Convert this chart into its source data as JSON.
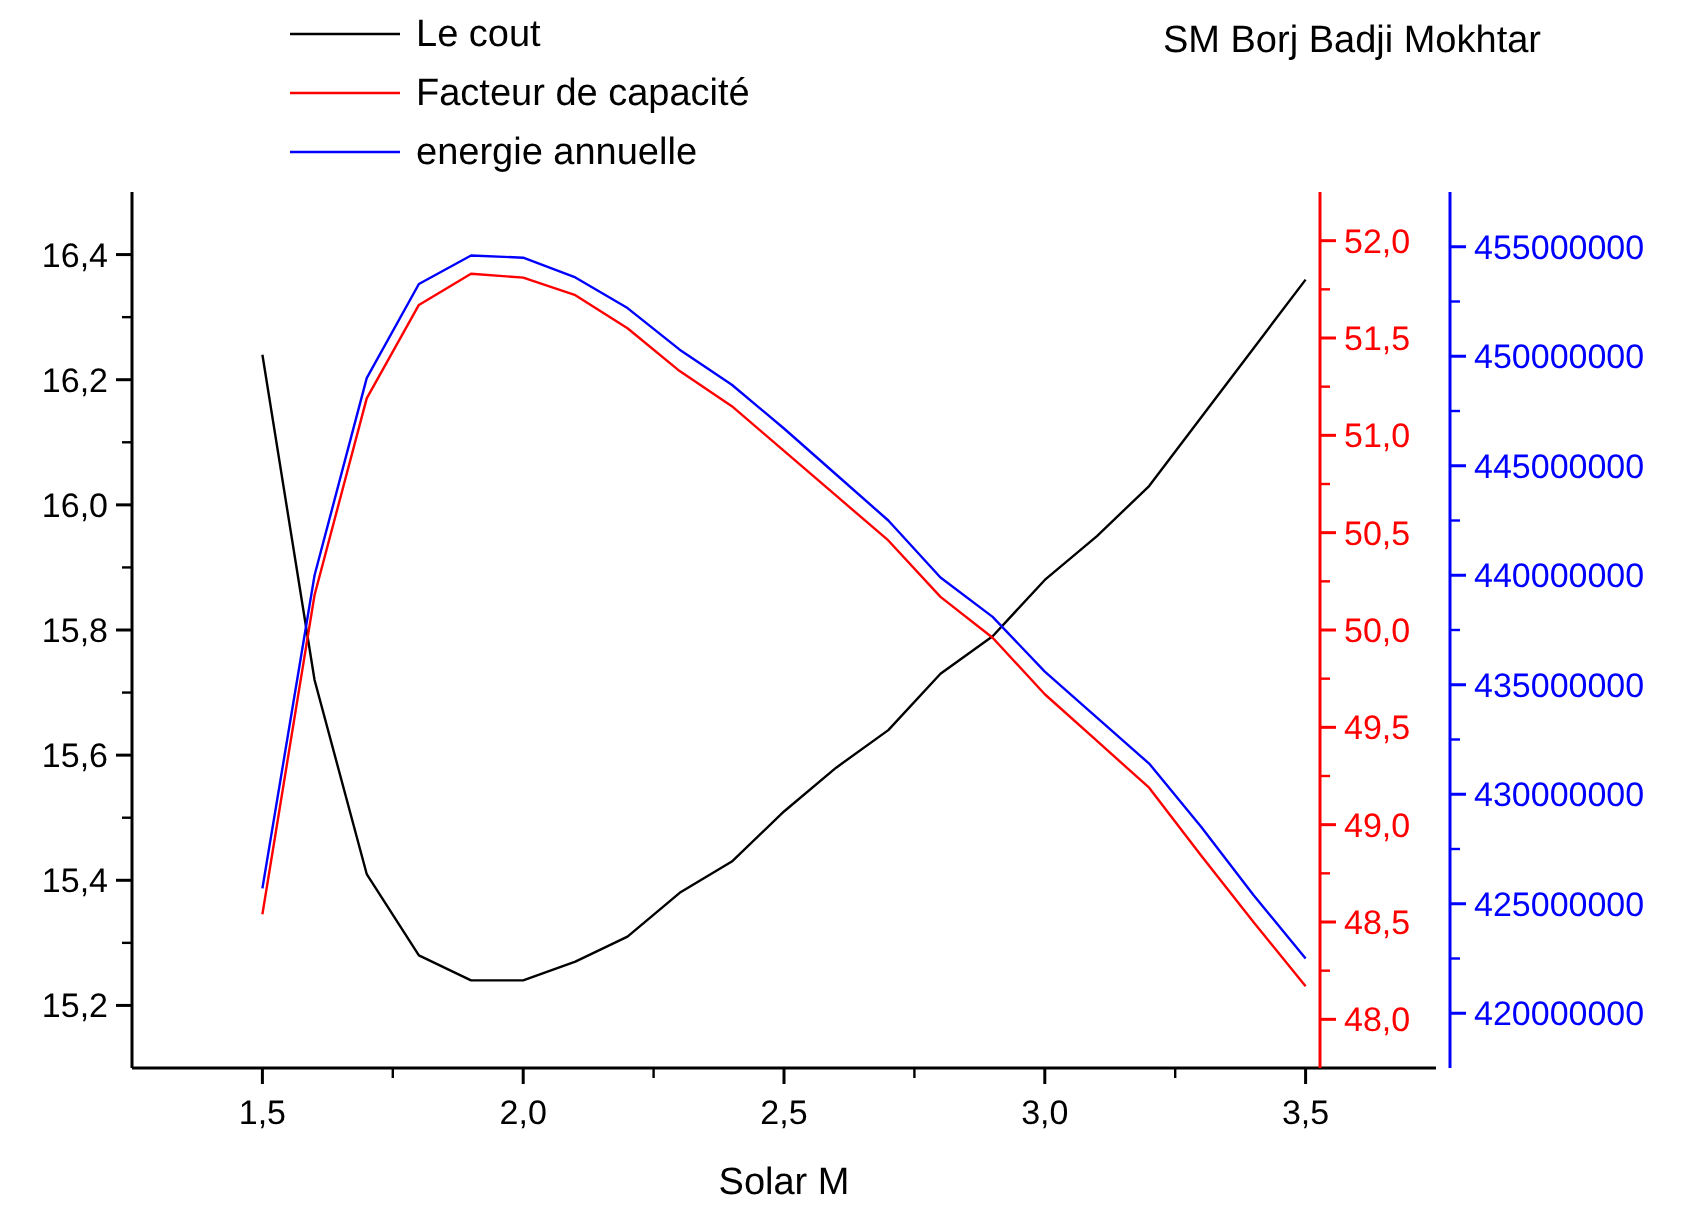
{
  "chart_data": {
    "type": "line",
    "title": "SM Borj Badji Mokhtar",
    "xlabel": "Solar M",
    "x": [
      1.5,
      1.6,
      1.7,
      1.8,
      1.9,
      2.0,
      2.1,
      2.2,
      2.3,
      2.4,
      2.5,
      2.6,
      2.7,
      2.8,
      2.9,
      3.0,
      3.1,
      3.2,
      3.3,
      3.4,
      3.5
    ],
    "series": [
      {
        "name": "Le cout",
        "color": "#000000",
        "axis": "y",
        "values": [
          16.24,
          15.72,
          15.41,
          15.28,
          15.24,
          15.24,
          15.27,
          15.31,
          15.38,
          15.43,
          15.51,
          15.58,
          15.64,
          15.73,
          15.79,
          15.88,
          15.95,
          16.03,
          16.14,
          16.25,
          16.36
        ]
      },
      {
        "name": "Facteur de capacité",
        "color": "#ff0000",
        "axis": "y2",
        "values": [
          48.54,
          50.18,
          51.19,
          51.67,
          51.83,
          51.81,
          51.72,
          51.55,
          51.33,
          51.15,
          50.92,
          50.69,
          50.46,
          50.17,
          49.96,
          49.67,
          49.43,
          49.19,
          48.84,
          48.5,
          48.17
        ]
      },
      {
        "name": "energie annuelle",
        "color": "#0000ff",
        "axis": "y3",
        "values": [
          425700000,
          440000000,
          449000000,
          453300000,
          454600000,
          454500000,
          453600000,
          452200000,
          450300000,
          448700000,
          446700000,
          444600000,
          442500000,
          439900000,
          438100000,
          435600000,
          433500000,
          431400000,
          428500000,
          425400000,
          422500000
        ]
      }
    ],
    "xlim": [
      1.25,
      3.75
    ],
    "xticks": [
      {
        "value": 1.5,
        "label": "1,5"
      },
      {
        "value": 2.0,
        "label": "2,0"
      },
      {
        "value": 2.5,
        "label": "2,5"
      },
      {
        "value": 3.0,
        "label": "3,0"
      },
      {
        "value": 3.5,
        "label": "3,5"
      }
    ],
    "ylim": [
      15.1,
      16.5
    ],
    "yticks": [
      {
        "value": 15.2,
        "label": "15,2"
      },
      {
        "value": 15.4,
        "label": "15,4"
      },
      {
        "value": 15.6,
        "label": "15,6"
      },
      {
        "value": 15.8,
        "label": "15,8"
      },
      {
        "value": 16.0,
        "label": "16,0"
      },
      {
        "value": 16.2,
        "label": "16,2"
      },
      {
        "value": 16.4,
        "label": "16,4"
      }
    ],
    "y2lim": [
      47.75,
      52.25
    ],
    "y2ticks": [
      {
        "value": 48,
        "label": "48,0"
      },
      {
        "value": 48.5,
        "label": "48,5"
      },
      {
        "value": 49,
        "label": "49,0"
      },
      {
        "value": 49.5,
        "label": "49,5"
      },
      {
        "value": 50,
        "label": "50,0"
      },
      {
        "value": 50.5,
        "label": "50,5"
      },
      {
        "value": 51,
        "label": "51,0"
      },
      {
        "value": 51.5,
        "label": "51,5"
      },
      {
        "value": 52,
        "label": "52,0"
      }
    ],
    "y3lim": [
      417500000,
      457500000
    ],
    "y3ticks": [
      420000000,
      425000000,
      430000000,
      435000000,
      440000000,
      445000000,
      450000000,
      455000000
    ],
    "legend": "top left",
    "grid": false,
    "marker": "none",
    "line_style": "solid"
  }
}
